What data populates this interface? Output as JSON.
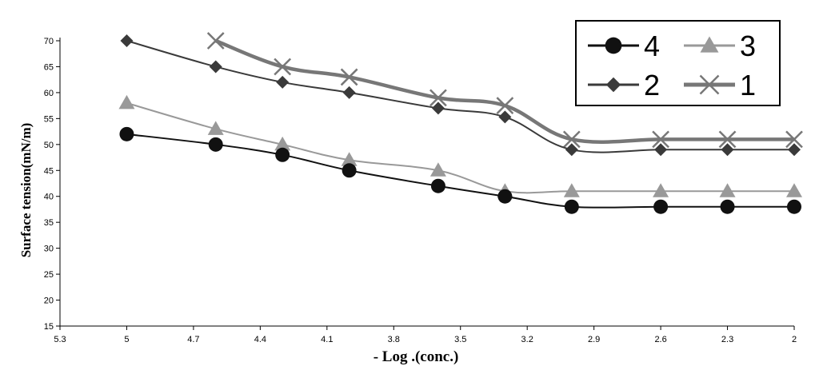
{
  "chart_data": {
    "type": "line",
    "xlabel": "- Log .(conc.)",
    "ylabel": "Surface tension(mN/m)",
    "x_ticks": [
      "5.3",
      "5",
      "4.7",
      "4.4",
      "4.1",
      "3.8",
      "3.5",
      "3.2",
      "2.9",
      "2.6",
      "2.3",
      "2"
    ],
    "y_ticks": [
      "15",
      "20",
      "25",
      "30",
      "35",
      "40",
      "45",
      "50",
      "55",
      "60",
      "65",
      "70"
    ],
    "xlim": [
      5.3,
      2
    ],
    "ylim": [
      15,
      70
    ],
    "grid": false,
    "legend_position": "top-right",
    "legend_order": [
      "4",
      "3",
      "2",
      "1"
    ],
    "series": [
      {
        "name": "1",
        "color": "#777777",
        "marker": "x",
        "x": [
          4.6,
          4.3,
          4.0,
          3.6,
          3.3,
          3.0,
          2.6,
          2.3,
          2.0
        ],
        "y": [
          70,
          65,
          63,
          59,
          57.5,
          51,
          51,
          51,
          51
        ]
      },
      {
        "name": "2",
        "color": "#3a3a3a",
        "marker": "diamond",
        "x": [
          5.0,
          4.6,
          4.3,
          4.0,
          3.6,
          3.3,
          3.0,
          2.6,
          2.3,
          2.0
        ],
        "y": [
          70,
          65,
          62,
          60,
          57,
          55.3,
          49,
          49,
          49,
          49
        ]
      },
      {
        "name": "3",
        "color": "#999999",
        "marker": "triangle",
        "x": [
          5.0,
          4.6,
          4.3,
          4.0,
          3.6,
          3.3,
          3.0,
          2.6,
          2.3,
          2.0
        ],
        "y": [
          58,
          53,
          50,
          47,
          45,
          41,
          41,
          41,
          41,
          41
        ]
      },
      {
        "name": "4",
        "color": "#111111",
        "marker": "circle",
        "x": [
          5.0,
          4.6,
          4.3,
          4.0,
          3.6,
          3.3,
          3.0,
          2.6,
          2.3,
          2.0
        ],
        "y": [
          52,
          50,
          48,
          45,
          42,
          40,
          38,
          38,
          38,
          38
        ]
      }
    ]
  }
}
